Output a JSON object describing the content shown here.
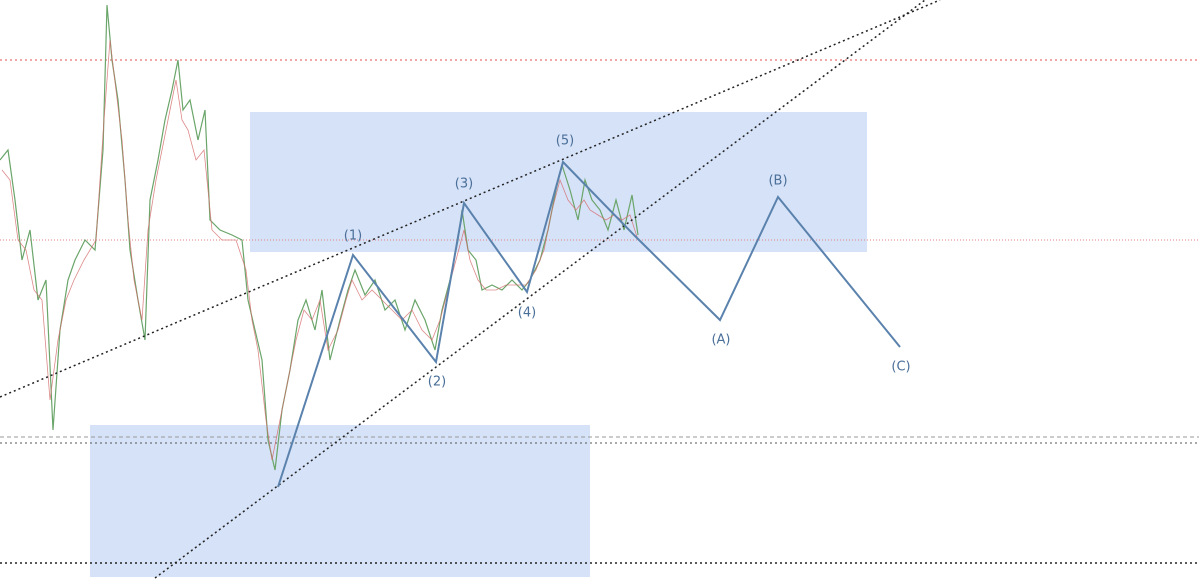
{
  "impulse_labels": [
    "(1)",
    "(2)",
    "(3)",
    "(4)",
    "(5)"
  ],
  "corrective_labels": [
    "(A)",
    "(B)",
    "(C)"
  ]
}
